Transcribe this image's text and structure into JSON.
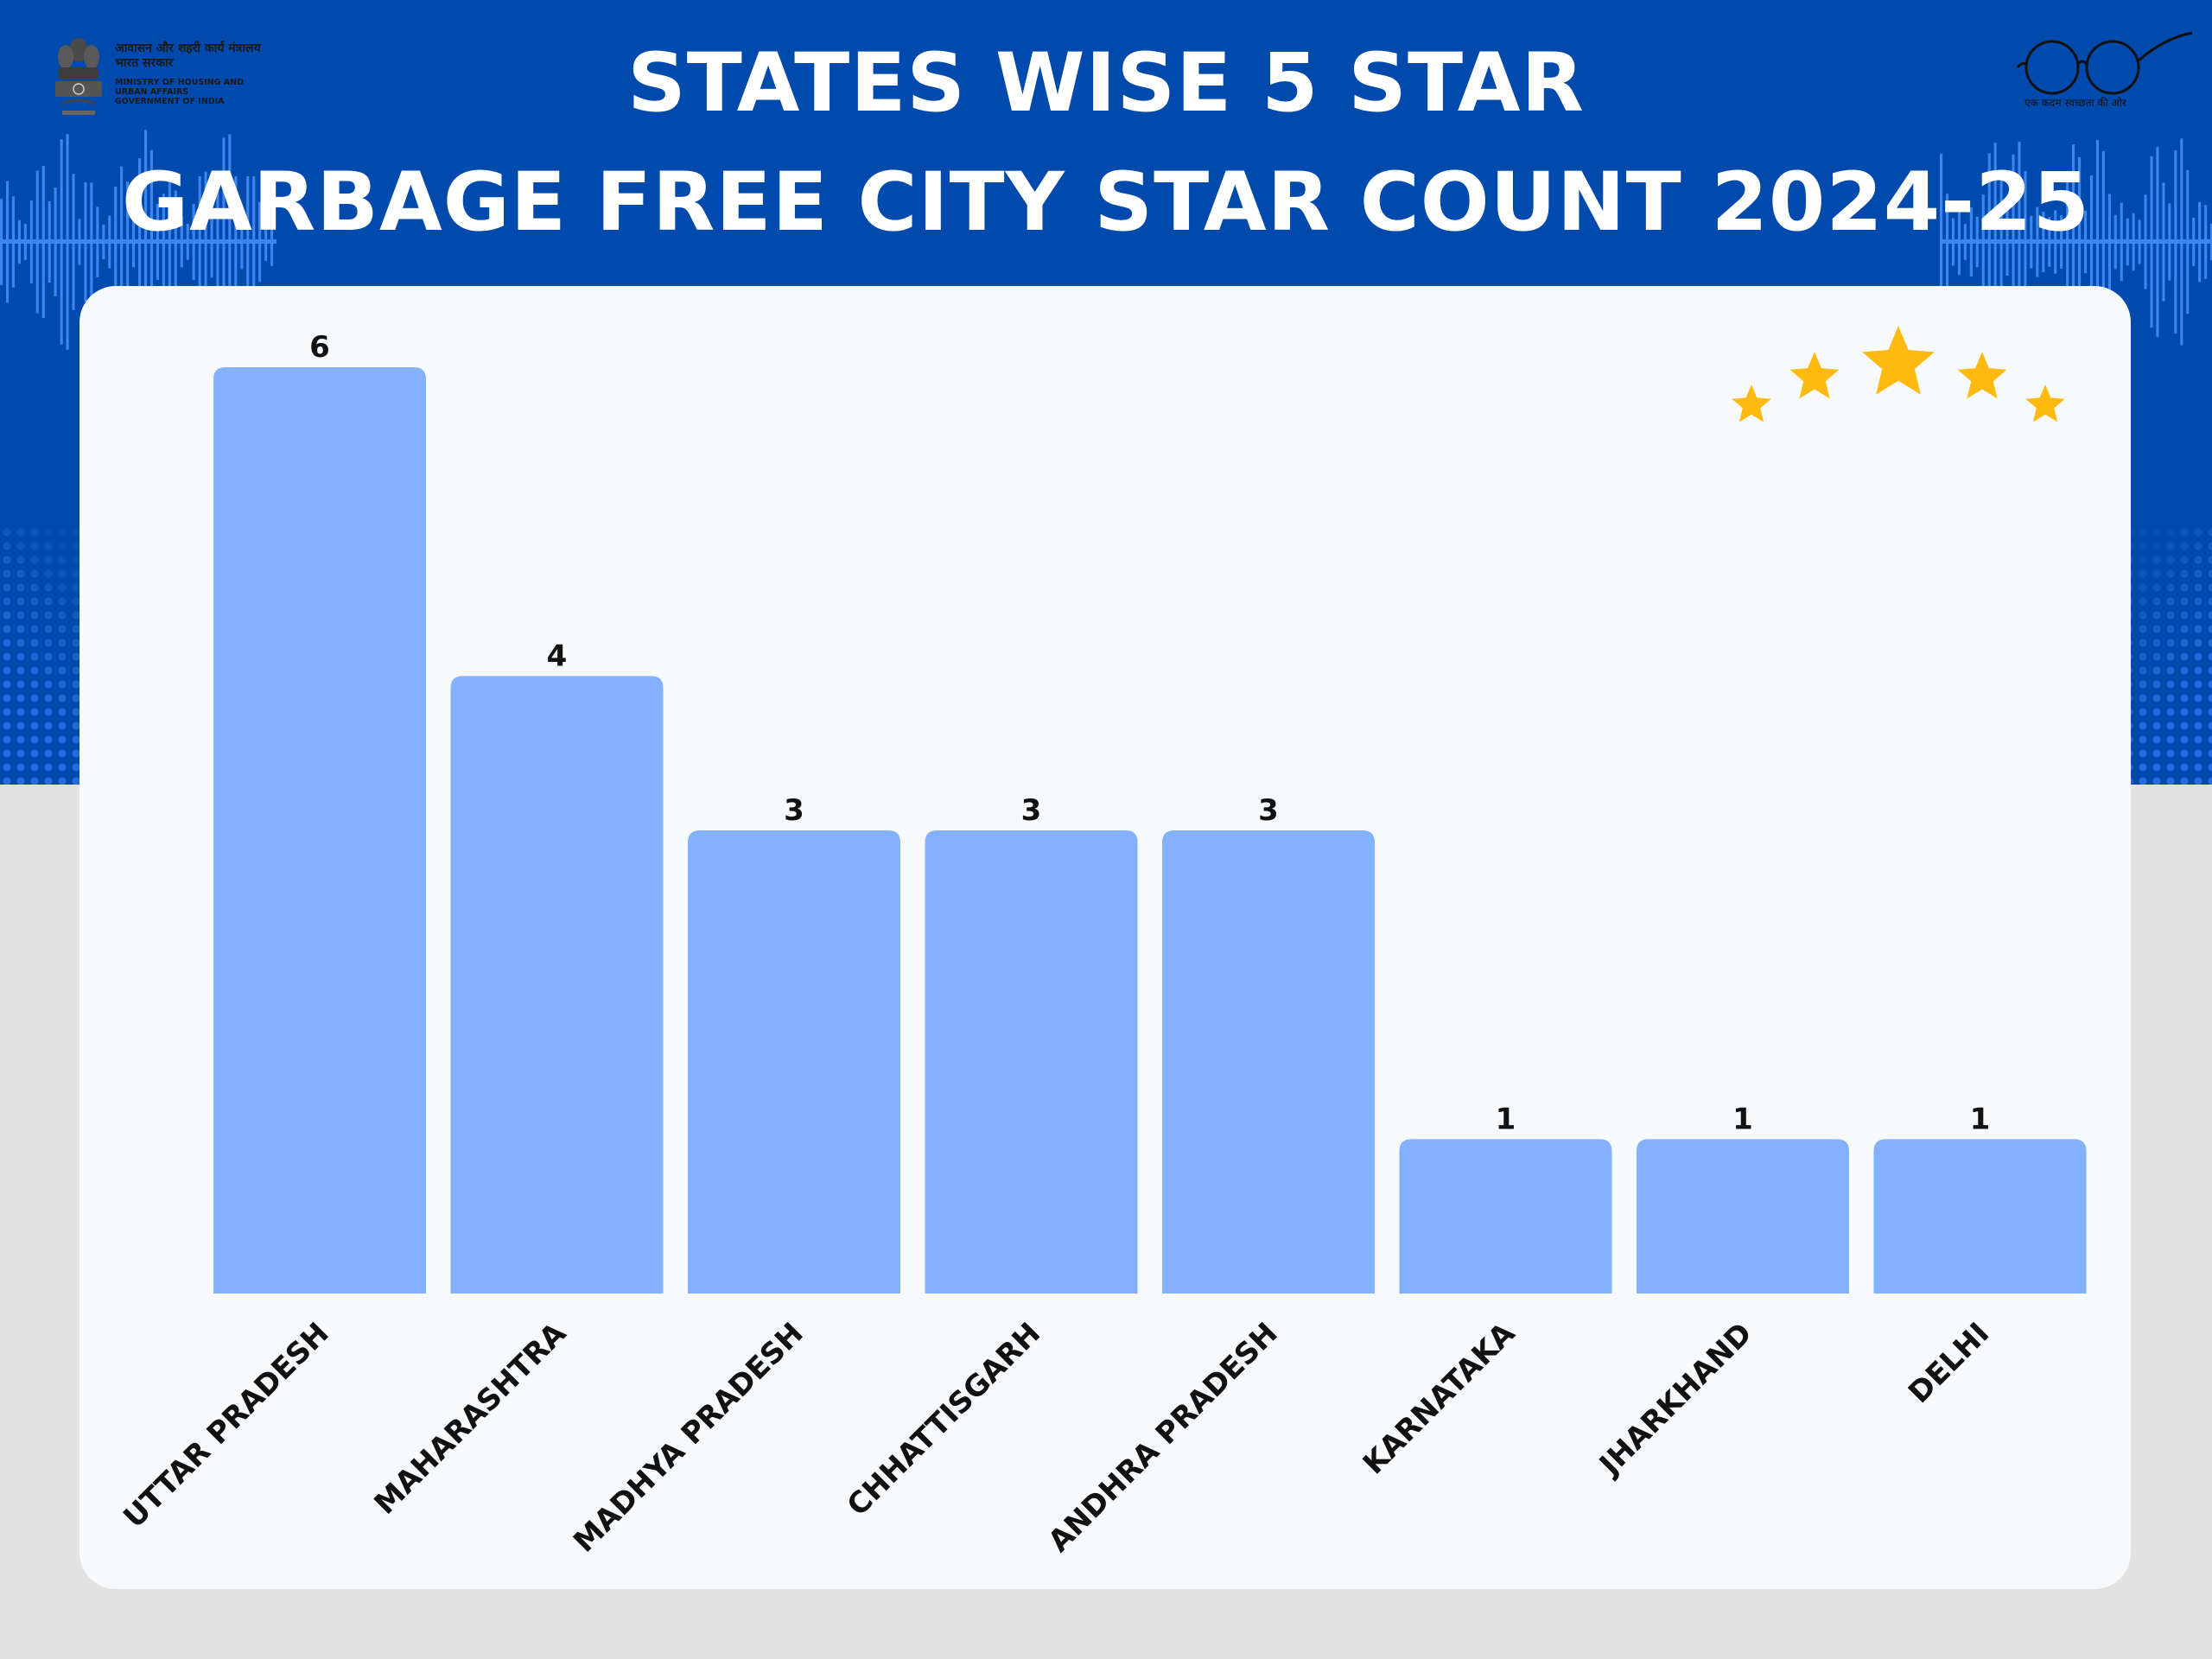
{
  "header": {
    "title_line1": "STATES WISE 5 STAR",
    "title_line2": "GARBAGE FREE CITY STAR COUNT 2024-25",
    "ministry_hindi": "आवासन और शहरी कार्य मंत्रालय\nभारत सरकार",
    "ministry_english": "MINISTRY OF HOUSING AND URBAN AFFAIRS GOVERNMENT OF INDIA",
    "logo_tagline": "एक कदम स्वच्छता की ओर"
  },
  "colors": {
    "header_bg": "#0049ad",
    "bar": "#84b1fe",
    "star": "#ffb90f",
    "panel": "#f6fafd"
  },
  "decorations": {
    "star_icons": 5
  },
  "chart_data": {
    "type": "bar",
    "categories": [
      "UTTAR PRADESH",
      "MAHARASHTRA",
      "MADHYA PRADESH",
      "CHHATTISGARH",
      "ANDHRA PRADESH",
      "KARNATAKA",
      "JHARKHAND",
      "DELHI"
    ],
    "values": [
      6,
      4,
      3,
      3,
      3,
      1,
      1,
      1
    ],
    "data_labels": [
      "6",
      "4",
      "3",
      "3",
      "3",
      "1",
      "1",
      "1"
    ],
    "ylim": [
      0,
      6
    ],
    "grid": false,
    "legend": "none"
  }
}
